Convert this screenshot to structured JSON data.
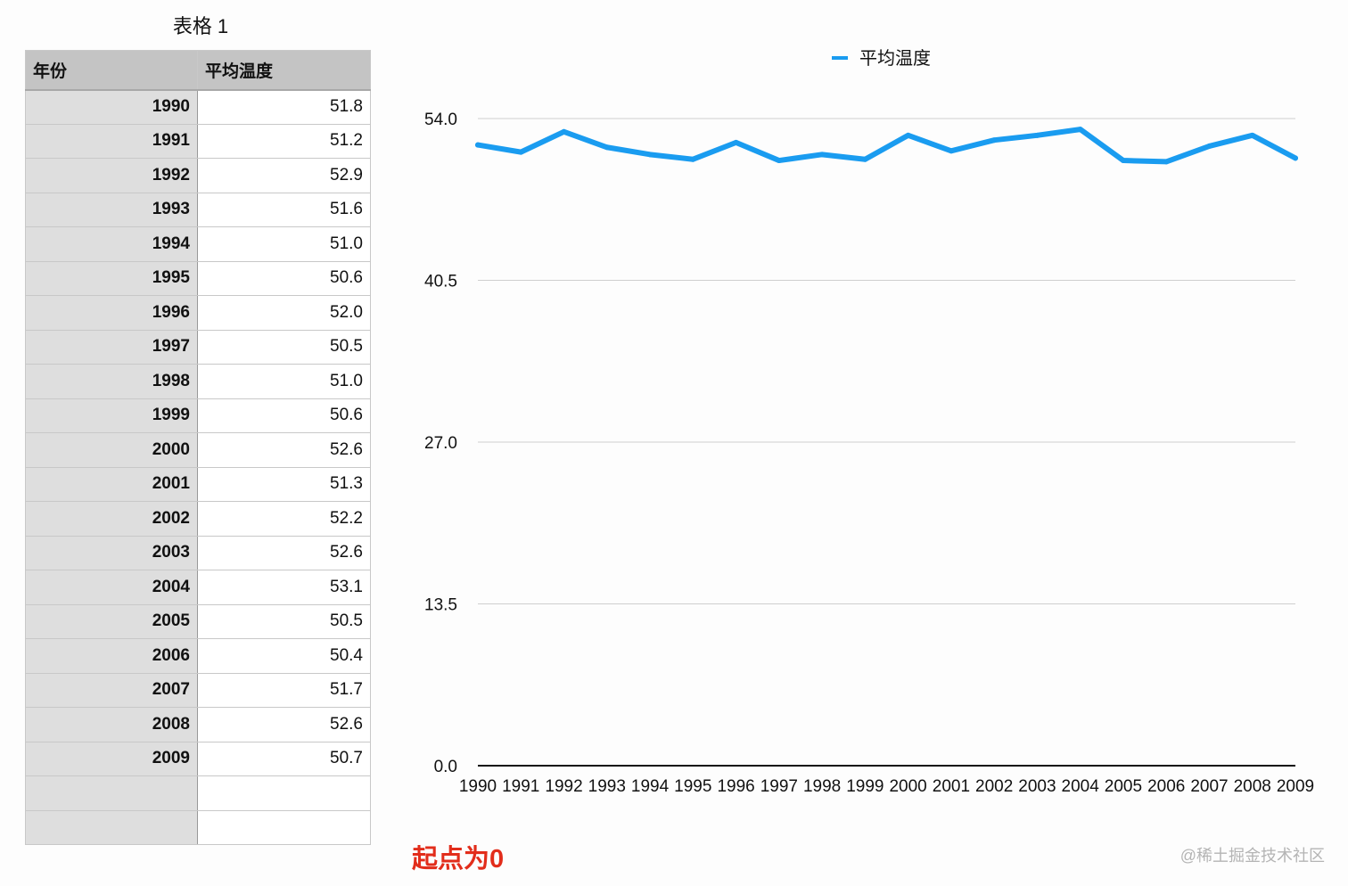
{
  "table": {
    "title": "表格 1",
    "headers": [
      "年份",
      "平均温度"
    ],
    "rows": [
      {
        "year": "1990",
        "value": "51.8"
      },
      {
        "year": "1991",
        "value": "51.2"
      },
      {
        "year": "1992",
        "value": "52.9"
      },
      {
        "year": "1993",
        "value": "51.6"
      },
      {
        "year": "1994",
        "value": "51.0"
      },
      {
        "year": "1995",
        "value": "50.6"
      },
      {
        "year": "1996",
        "value": "52.0"
      },
      {
        "year": "1997",
        "value": "50.5"
      },
      {
        "year": "1998",
        "value": "51.0"
      },
      {
        "year": "1999",
        "value": "50.6"
      },
      {
        "year": "2000",
        "value": "52.6"
      },
      {
        "year": "2001",
        "value": "51.3"
      },
      {
        "year": "2002",
        "value": "52.2"
      },
      {
        "year": "2003",
        "value": "52.6"
      },
      {
        "year": "2004",
        "value": "53.1"
      },
      {
        "year": "2005",
        "value": "50.5"
      },
      {
        "year": "2006",
        "value": "50.4"
      },
      {
        "year": "2007",
        "value": "51.7"
      },
      {
        "year": "2008",
        "value": "52.6"
      },
      {
        "year": "2009",
        "value": "50.7"
      },
      {
        "year": "",
        "value": ""
      },
      {
        "year": "",
        "value": ""
      }
    ]
  },
  "chart_data": {
    "type": "line",
    "x": [
      "1990",
      "1991",
      "1992",
      "1993",
      "1994",
      "1995",
      "1996",
      "1997",
      "1998",
      "1999",
      "2000",
      "2001",
      "2002",
      "2003",
      "2004",
      "2005",
      "2006",
      "2007",
      "2008",
      "2009"
    ],
    "series": [
      {
        "name": "平均温度",
        "values": [
          51.8,
          51.2,
          52.9,
          51.6,
          51.0,
          50.6,
          52.0,
          50.5,
          51.0,
          50.6,
          52.6,
          51.3,
          52.2,
          52.6,
          53.1,
          50.5,
          50.4,
          51.7,
          52.6,
          50.7
        ],
        "color": "#1a9cf0"
      }
    ],
    "yticks": [
      "0.0",
      "13.5",
      "27.0",
      "40.5",
      "54.0"
    ],
    "ylim": [
      0,
      54
    ],
    "grid": true,
    "legend_position": "top-center"
  },
  "annotation": "起点为0",
  "watermark": "@稀土掘金技术社区"
}
